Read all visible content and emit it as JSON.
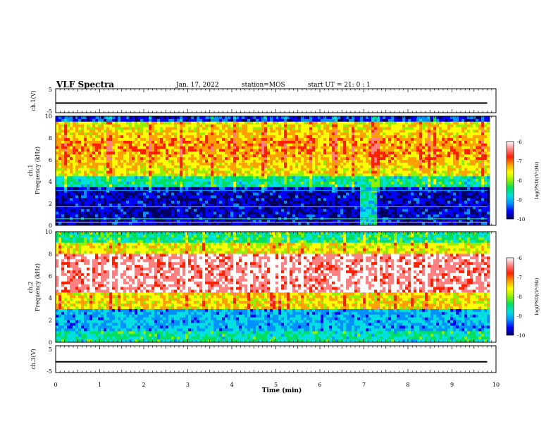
{
  "header": {
    "title": "VLF Spectra",
    "date": "Jan. 17, 2022",
    "station": "station=MOS",
    "start": "start  UT =   21: 0  : 1"
  },
  "colors": {
    "cmap": [
      "#000060",
      "#0000ff",
      "#0090ff",
      "#00e0e0",
      "#00e060",
      "#90f000",
      "#ffff00",
      "#ffa000",
      "#ff2000",
      "#ff8080",
      "#ffffff"
    ]
  },
  "chart_data": [
    {
      "type": "line",
      "panel": "ch1-waveform",
      "ylabel": "ch.1(V)",
      "ylim": [
        -5,
        5
      ],
      "yticks": [
        "5",
        "-5"
      ],
      "xlim": [
        0,
        10
      ],
      "level": -1
    },
    {
      "type": "heatmap",
      "panel": "ch1-spectrogram",
      "ylabel_top": "ch.1",
      "ylabel": "Frequency (kHz)",
      "ylim": [
        0,
        10
      ],
      "yticks": [
        "0",
        "2",
        "4",
        "6",
        "8",
        "10"
      ],
      "xlim": [
        0,
        10
      ],
      "colorbar_label": "log(PSD)(V²/Hz)",
      "colorbar_ticks": [
        "-6",
        "-7",
        "-8",
        "-9",
        "-10"
      ],
      "crange": [
        -10,
        -6
      ],
      "data_end_min": 9.8
    },
    {
      "type": "heatmap",
      "panel": "ch2-spectrogram",
      "ylabel_top": "ch.2",
      "ylabel": "Frequency (kHz)",
      "ylim": [
        0,
        10
      ],
      "yticks": [
        "0",
        "2",
        "4",
        "6",
        "8",
        "10"
      ],
      "xlim": [
        0,
        10
      ],
      "colorbar_label": "log(PSD)(V²/Hz)",
      "colorbar_ticks": [
        "-6",
        "-7",
        "-8",
        "-9",
        "-10"
      ],
      "crange": [
        -10,
        -6
      ],
      "data_end_min": 9.8
    },
    {
      "type": "line",
      "panel": "ch3-waveform",
      "ylabel": "ch.3(V)",
      "ylim": [
        -5,
        5
      ],
      "yticks": [
        "5",
        "-5"
      ],
      "xlim": [
        0,
        10
      ],
      "level": -1,
      "xlabel": "Time  (min)",
      "xticks": [
        "0",
        "1",
        "2",
        "3",
        "4",
        "5",
        "6",
        "7",
        "8",
        "9",
        "10"
      ]
    }
  ]
}
